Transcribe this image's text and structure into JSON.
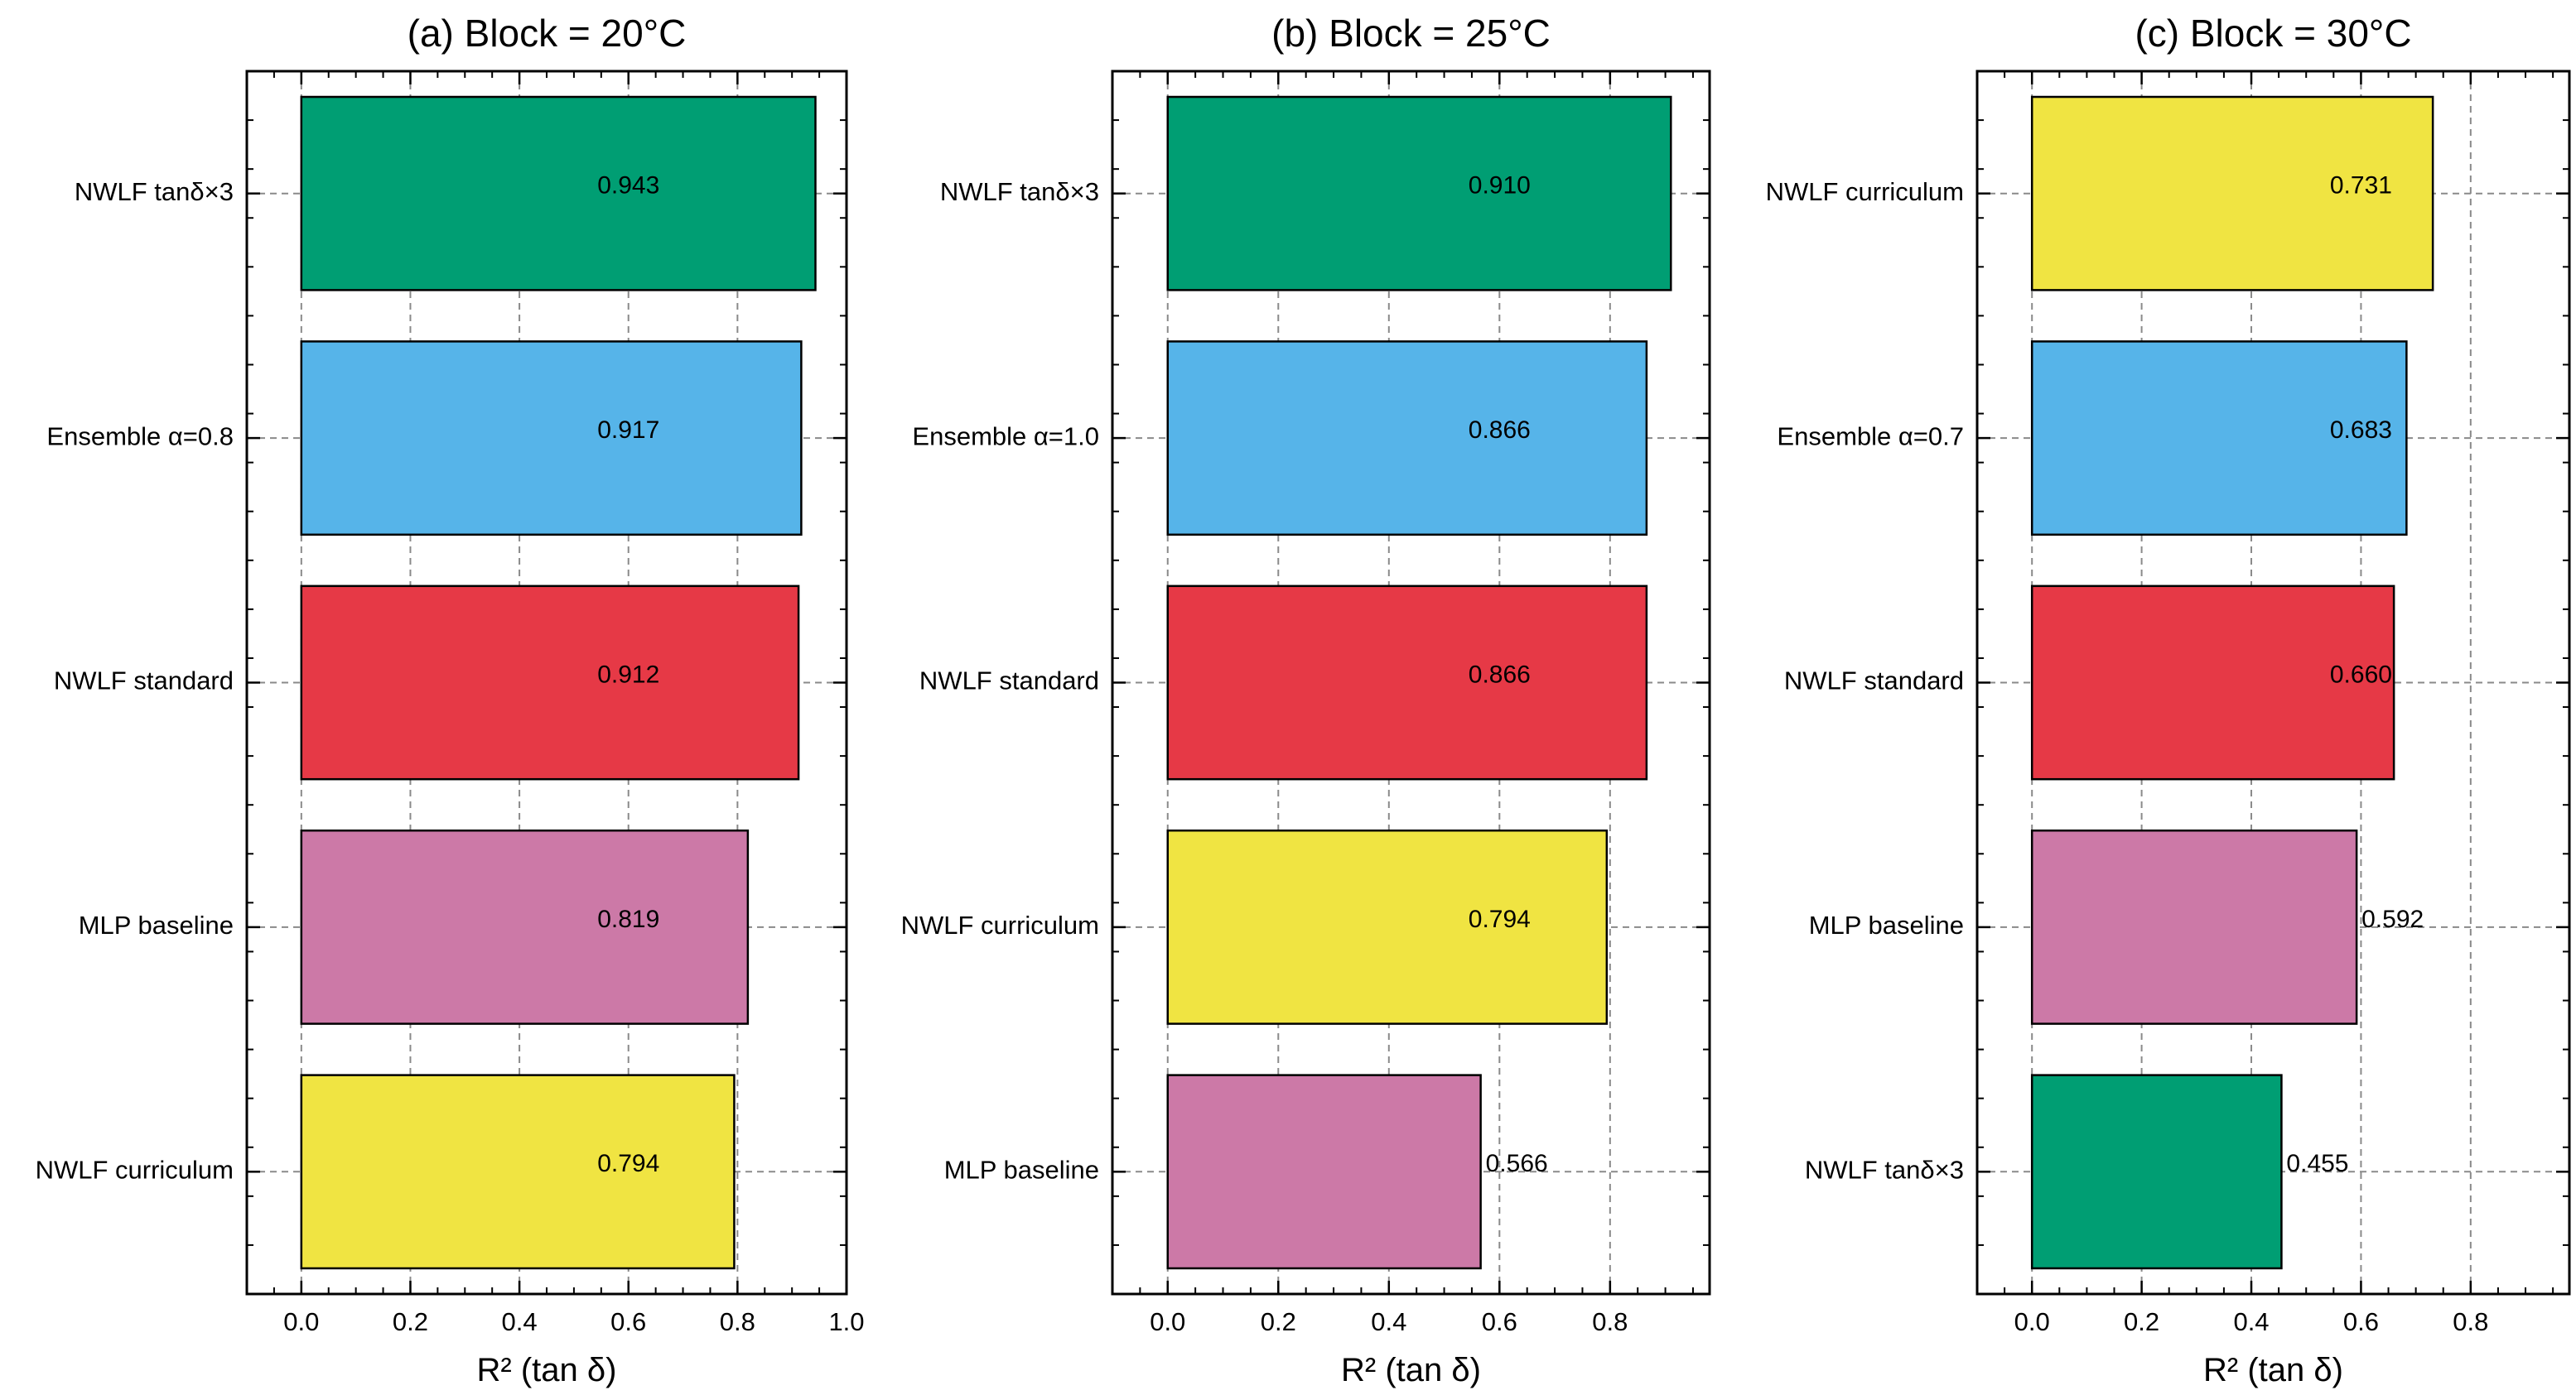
{
  "chart_data": [
    {
      "type": "bar",
      "orientation": "horizontal",
      "title": "(a)  Block = 20°C",
      "xlabel": "R² (tan δ)",
      "xlim": [
        -0.1,
        1.0
      ],
      "xticks": [
        "0.0",
        "0.2",
        "0.4",
        "0.6",
        "0.8",
        "1.0"
      ],
      "grid": true,
      "categories": [
        "NWLF tanδ×3",
        "Ensemble α=0.8",
        "NWLF standard",
        "MLP baseline",
        "NWLF curriculum"
      ],
      "values": [
        0.943,
        0.917,
        0.912,
        0.819,
        0.794
      ],
      "value_labels": [
        "0.943",
        "0.917",
        "0.912",
        "0.819",
        "0.794"
      ],
      "colors": [
        "#009E73",
        "#56B4E9",
        "#E63946",
        "#CC79A7",
        "#F0E442"
      ]
    },
    {
      "type": "bar",
      "orientation": "horizontal",
      "title": "(b)  Block = 25°C",
      "xlabel": "R² (tan δ)",
      "xlim": [
        -0.1,
        0.98
      ],
      "xticks": [
        "0.0",
        "0.2",
        "0.4",
        "0.6",
        "0.8"
      ],
      "grid": true,
      "categories": [
        "NWLF tanδ×3",
        "Ensemble α=1.0",
        "NWLF standard",
        "NWLF curriculum",
        "MLP baseline"
      ],
      "values": [
        0.91,
        0.866,
        0.866,
        0.794,
        0.566
      ],
      "value_labels": [
        "0.910",
        "0.866",
        "0.866",
        "0.794",
        "0.566"
      ],
      "colors": [
        "#009E73",
        "#56B4E9",
        "#E63946",
        "#F0E442",
        "#CC79A7"
      ]
    },
    {
      "type": "bar",
      "orientation": "horizontal",
      "title": "(c)  Block = 30°C",
      "xlabel": "R² (tan δ)",
      "xlim": [
        -0.1,
        0.98
      ],
      "xticks": [
        "0.0",
        "0.2",
        "0.4",
        "0.6",
        "0.8"
      ],
      "grid": true,
      "categories": [
        "NWLF curriculum",
        "Ensemble α=0.7",
        "NWLF standard",
        "MLP baseline",
        "NWLF tanδ×3"
      ],
      "values": [
        0.731,
        0.683,
        0.66,
        0.592,
        0.455
      ],
      "value_labels": [
        "0.731",
        "0.683",
        "0.660",
        "0.592",
        "0.455"
      ],
      "colors": [
        "#F0E442",
        "#56B4E9",
        "#E63946",
        "#CC79A7",
        "#009E73"
      ]
    }
  ]
}
